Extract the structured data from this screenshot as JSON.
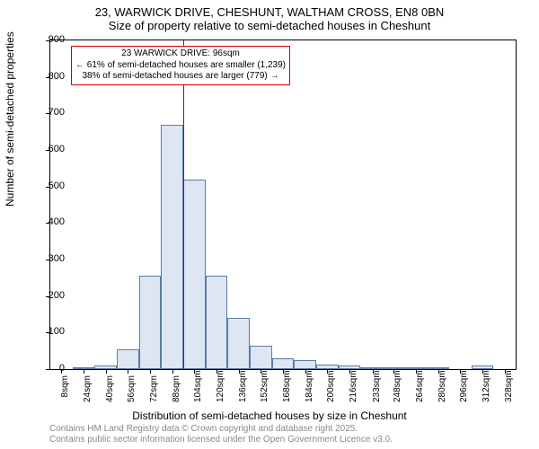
{
  "title": {
    "line1": "23, WARWICK DRIVE, CHESHUNT, WALTHAM CROSS, EN8 0BN",
    "line2": "Size of property relative to semi-detached houses in Cheshunt"
  },
  "axes": {
    "ylabel": "Number of semi-detached properties",
    "xlabel": "Distribution of semi-detached houses by size in Cheshunt",
    "ylim": [
      0,
      900
    ],
    "yticks": [
      0,
      100,
      200,
      300,
      400,
      500,
      600,
      700,
      800,
      900
    ],
    "xticks": [
      8,
      24,
      40,
      56,
      72,
      88,
      104,
      120,
      136,
      152,
      168,
      184,
      200,
      216,
      233,
      248,
      264,
      280,
      296,
      312,
      328
    ],
    "xtick_suffix": "sqm",
    "x_data_min": 0,
    "x_data_max": 336
  },
  "histogram": {
    "type": "histogram",
    "bin_width": 16,
    "bins": [
      {
        "start": 0,
        "count": 0
      },
      {
        "start": 16,
        "count": 5
      },
      {
        "start": 32,
        "count": 10
      },
      {
        "start": 48,
        "count": 55
      },
      {
        "start": 64,
        "count": 255
      },
      {
        "start": 80,
        "count": 670
      },
      {
        "start": 96,
        "count": 520
      },
      {
        "start": 112,
        "count": 255
      },
      {
        "start": 128,
        "count": 140
      },
      {
        "start": 144,
        "count": 65
      },
      {
        "start": 160,
        "count": 30
      },
      {
        "start": 176,
        "count": 25
      },
      {
        "start": 192,
        "count": 12
      },
      {
        "start": 208,
        "count": 10
      },
      {
        "start": 224,
        "count": 2
      },
      {
        "start": 240,
        "count": 2
      },
      {
        "start": 256,
        "count": 2
      },
      {
        "start": 272,
        "count": 2
      },
      {
        "start": 288,
        "count": 0
      },
      {
        "start": 304,
        "count": 10
      },
      {
        "start": 320,
        "count": 0
      }
    ],
    "bar_fill": "#dde6f2",
    "bar_border": "#5b7ba8"
  },
  "reference_line": {
    "value": 96,
    "color": "#cc0000"
  },
  "annotation": {
    "line1": "23 WARWICK DRIVE: 96sqm",
    "line2": "← 61% of semi-detached houses are smaller (1,239)",
    "line3": "38% of semi-detached houses are larger (779) →",
    "border_color": "#cc0000"
  },
  "footer": {
    "line1": "Contains HM Land Registry data © Crown copyright and database right 2025.",
    "line2": "Contains public sector information licensed under the Open Government Licence v3.0."
  },
  "style": {
    "background_color": "#ffffff",
    "title_fontsize": 13,
    "label_fontsize": 12,
    "tick_fontsize": 11,
    "xtick_fontsize": 10,
    "annotation_fontsize": 10,
    "footer_fontsize": 10,
    "footer_color": "#888888"
  }
}
